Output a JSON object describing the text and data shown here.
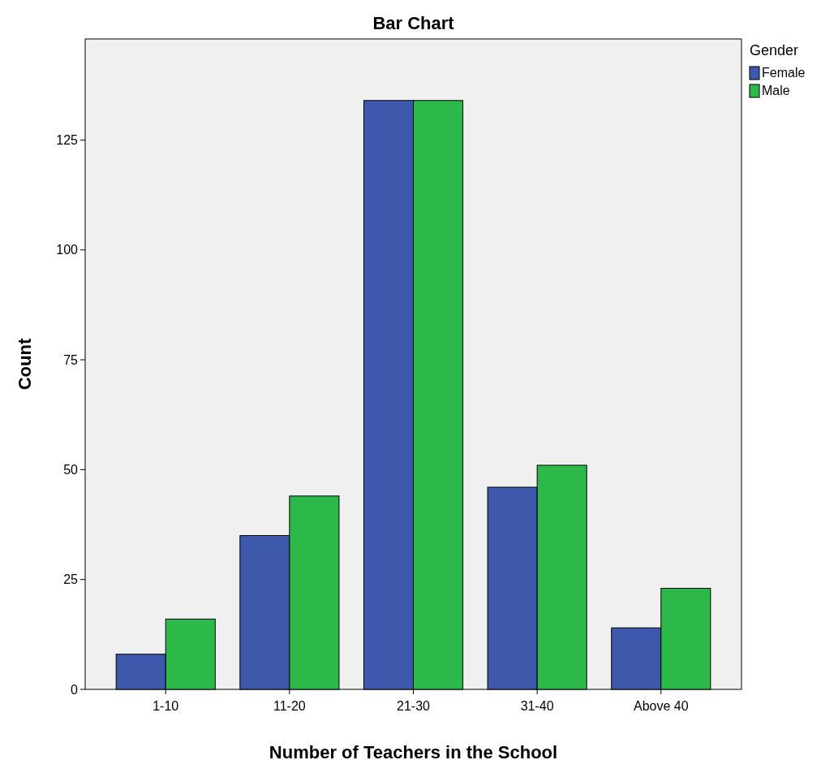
{
  "chart_data": {
    "type": "bar",
    "title": "Bar Chart",
    "xlabel": "Number of Teachers in the School",
    "ylabel": "Count",
    "legend_title": "Gender",
    "categories": [
      "1-10",
      "11-20",
      "21-30",
      "31-40",
      "Above 40"
    ],
    "series": [
      {
        "name": "Female",
        "color": "#3e58ac",
        "values": [
          8,
          35,
          134,
          46,
          14
        ]
      },
      {
        "name": "Male",
        "color": "#2db84a",
        "values": [
          16,
          44,
          134,
          51,
          23
        ]
      }
    ],
    "ylim": [
      0,
      148
    ],
    "yticks": [
      0,
      25,
      50,
      75,
      100,
      125
    ],
    "grid": false,
    "legend": "top right"
  }
}
